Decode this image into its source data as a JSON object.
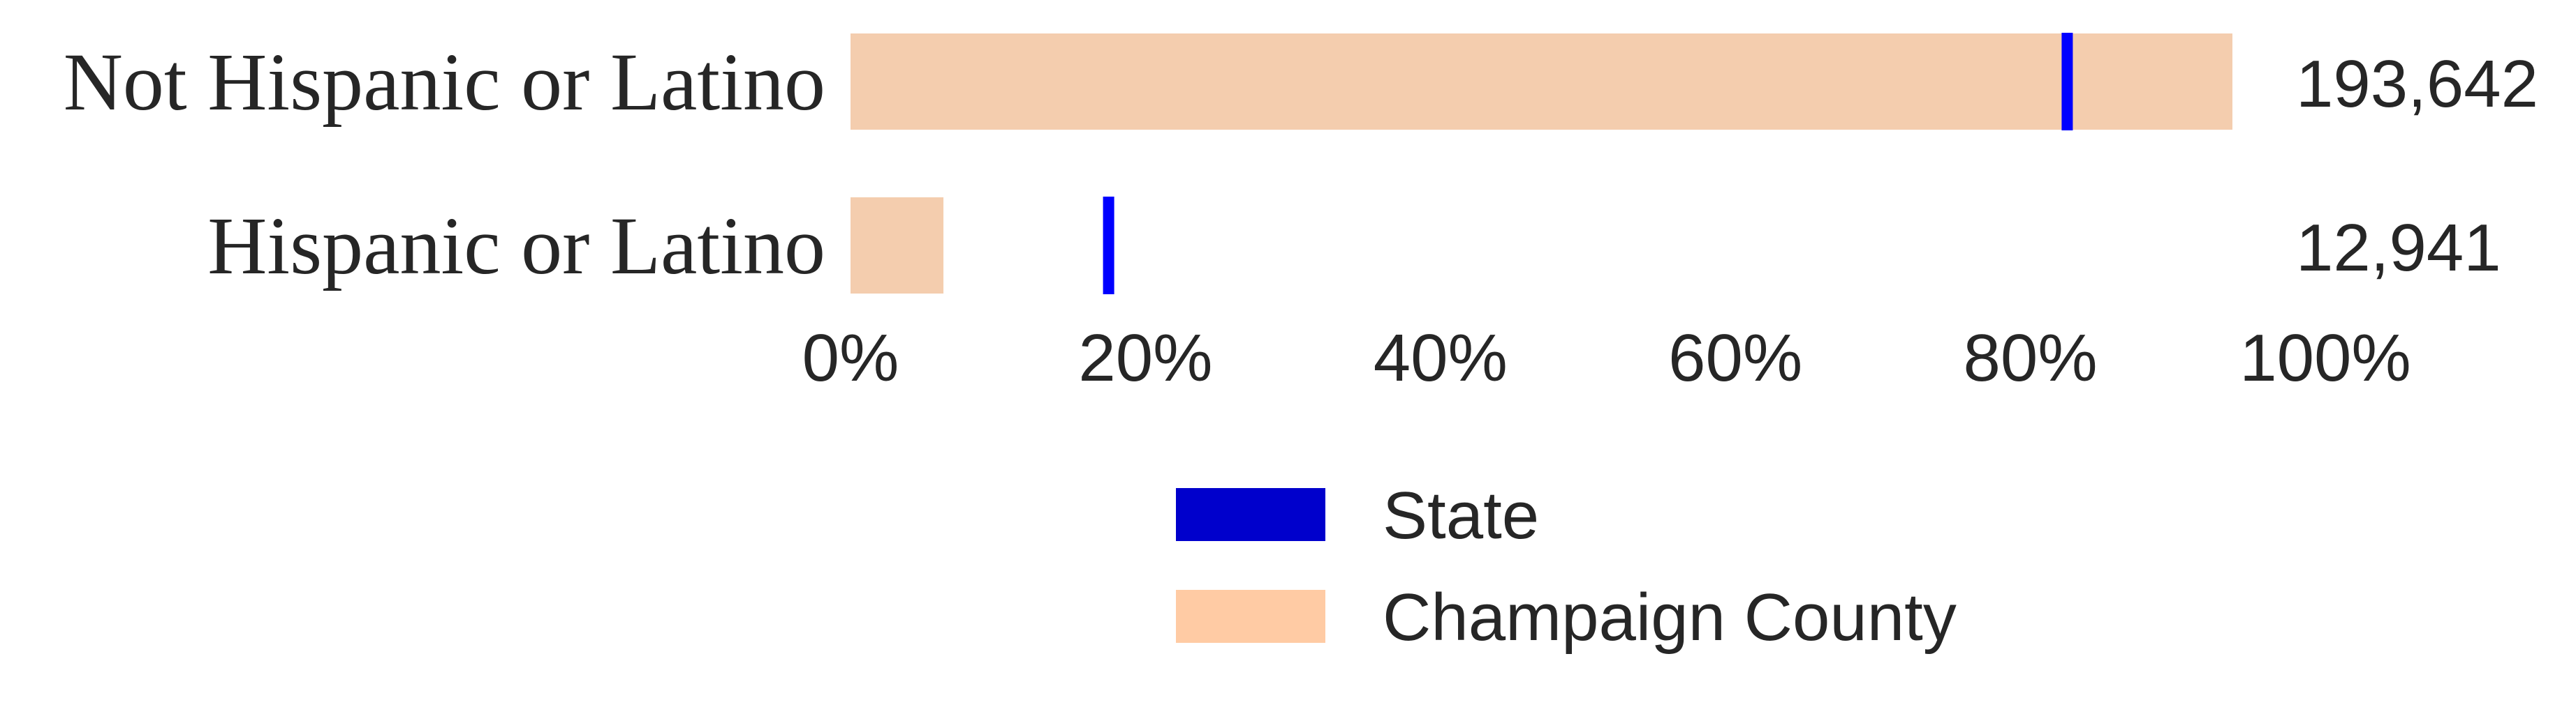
{
  "chart_data": {
    "type": "bar",
    "orientation": "horizontal",
    "categories": [
      "Not Hispanic or Latino",
      "Hispanic or Latino"
    ],
    "series": [
      {
        "name": "Champaign County",
        "values": [
          93.7,
          6.3
        ],
        "color": "#f4cdae"
      },
      {
        "name": "State",
        "values": [
          82.5,
          17.5
        ],
        "color": "#0000ff",
        "marker": "line"
      }
    ],
    "counts": [
      "193,642",
      "12,941"
    ],
    "xticks": [
      "0%",
      "20%",
      "40%",
      "60%",
      "80%",
      "100%"
    ],
    "xtick_values": [
      0,
      20,
      40,
      60,
      80,
      100
    ],
    "xlim": [
      0,
      100
    ],
    "grid": false,
    "legend": {
      "placement": "bottom-center",
      "entries": [
        {
          "name": "State",
          "color": "#0000cc"
        },
        {
          "name": "Champaign County",
          "color": "#ffcba4"
        }
      ]
    },
    "title": "",
    "xlabel": "",
    "ylabel": ""
  }
}
